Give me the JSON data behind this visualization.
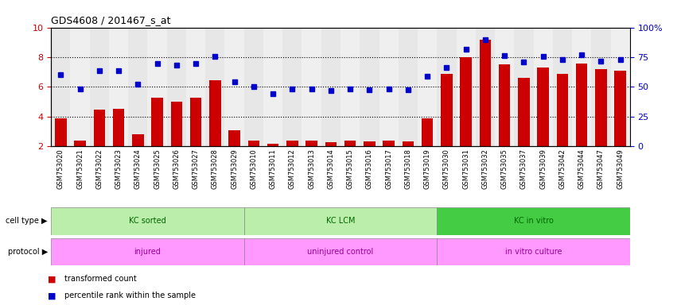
{
  "title": "GDS4608 / 201467_s_at",
  "samples": [
    "GSM753020",
    "GSM753021",
    "GSM753022",
    "GSM753023",
    "GSM753024",
    "GSM753025",
    "GSM753026",
    "GSM753027",
    "GSM753028",
    "GSM753029",
    "GSM753010",
    "GSM753011",
    "GSM753012",
    "GSM753013",
    "GSM753014",
    "GSM753015",
    "GSM753016",
    "GSM753017",
    "GSM753018",
    "GSM753019",
    "GSM753030",
    "GSM753031",
    "GSM753032",
    "GSM753035",
    "GSM753037",
    "GSM753039",
    "GSM753042",
    "GSM753044",
    "GSM753047",
    "GSM753049"
  ],
  "transformed_count": [
    3.9,
    2.4,
    4.45,
    4.55,
    2.8,
    5.3,
    5.0,
    5.3,
    6.45,
    3.1,
    2.4,
    2.2,
    2.4,
    2.4,
    2.3,
    2.4,
    2.35,
    2.4,
    2.35,
    3.9,
    6.9,
    8.0,
    9.2,
    7.5,
    6.6,
    7.3,
    6.9,
    7.55,
    7.2,
    7.1
  ],
  "percentile_rank": [
    6.8,
    5.85,
    7.1,
    7.1,
    6.2,
    7.55,
    7.45,
    7.55,
    8.05,
    6.35,
    6.0,
    5.55,
    5.85,
    5.85,
    5.75,
    5.85,
    5.8,
    5.85,
    5.8,
    6.7,
    7.3,
    8.55,
    9.2,
    8.1,
    7.7,
    8.05,
    7.85,
    8.15,
    7.75,
    7.85
  ],
  "cell_type_groups": [
    {
      "label": "KC sorted",
      "start": 0,
      "end": 9,
      "color": "#BBEEAA"
    },
    {
      "label": "KC LCM",
      "start": 10,
      "end": 19,
      "color": "#BBEEAA"
    },
    {
      "label": "KC in vitro",
      "start": 20,
      "end": 29,
      "color": "#44CC44"
    }
  ],
  "protocol_groups": [
    {
      "label": "injured",
      "start": 0,
      "end": 9,
      "color": "#FF99FF"
    },
    {
      "label": "uninjured control",
      "start": 10,
      "end": 19,
      "color": "#FF99FF"
    },
    {
      "label": "in vitro culture",
      "start": 20,
      "end": 29,
      "color": "#FF99FF"
    }
  ],
  "bar_color": "#CC0000",
  "dot_color": "#0000CC",
  "ylim_left": [
    2,
    10
  ],
  "ylim_right": [
    0,
    100
  ],
  "yticks_left": [
    2,
    4,
    6,
    8,
    10
  ],
  "yticks_right": [
    0,
    25,
    50,
    75,
    100
  ],
  "hlines": [
    4.0,
    6.0,
    8.0
  ],
  "ylabel_left_color": "#CC0000",
  "ylabel_right_color": "#0000CC",
  "bar_bottom": 2.0,
  "cell_type_label_color": "#006600",
  "protocol_label_color": "#990099",
  "stripe_colors": [
    "#D0D0D0",
    "#E0E0E0"
  ]
}
